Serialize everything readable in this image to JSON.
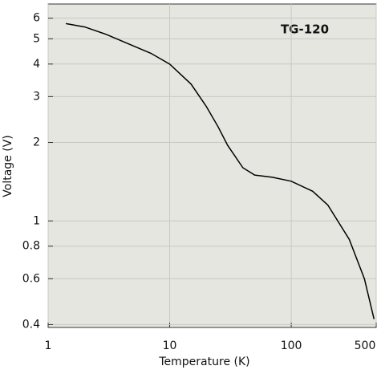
{
  "chart_data": {
    "type": "line",
    "x_label": "Temperature (K)",
    "y_label": "Voltage (V)",
    "annotation": "TG-120",
    "x": [
      1.4,
      2,
      3,
      5,
      7,
      10,
      15,
      20,
      25,
      30,
      40,
      50,
      70,
      100,
      150,
      200,
      300,
      400,
      480
    ],
    "values": [
      5.72,
      5.55,
      5.2,
      4.7,
      4.4,
      4.0,
      3.35,
      2.75,
      2.3,
      1.95,
      1.6,
      1.5,
      1.47,
      1.42,
      1.3,
      1.15,
      0.85,
      0.6,
      0.42
    ],
    "color": "#000000",
    "log_x": true,
    "log_y": true,
    "grid": true,
    "xlim": [
      1,
      500
    ],
    "ylim": [
      0.39,
      6.8
    ],
    "xticks": [
      1,
      10,
      100,
      500
    ],
    "yticks": [
      0.4,
      0.6,
      0.8,
      1,
      2,
      3,
      4,
      5,
      6
    ]
  }
}
